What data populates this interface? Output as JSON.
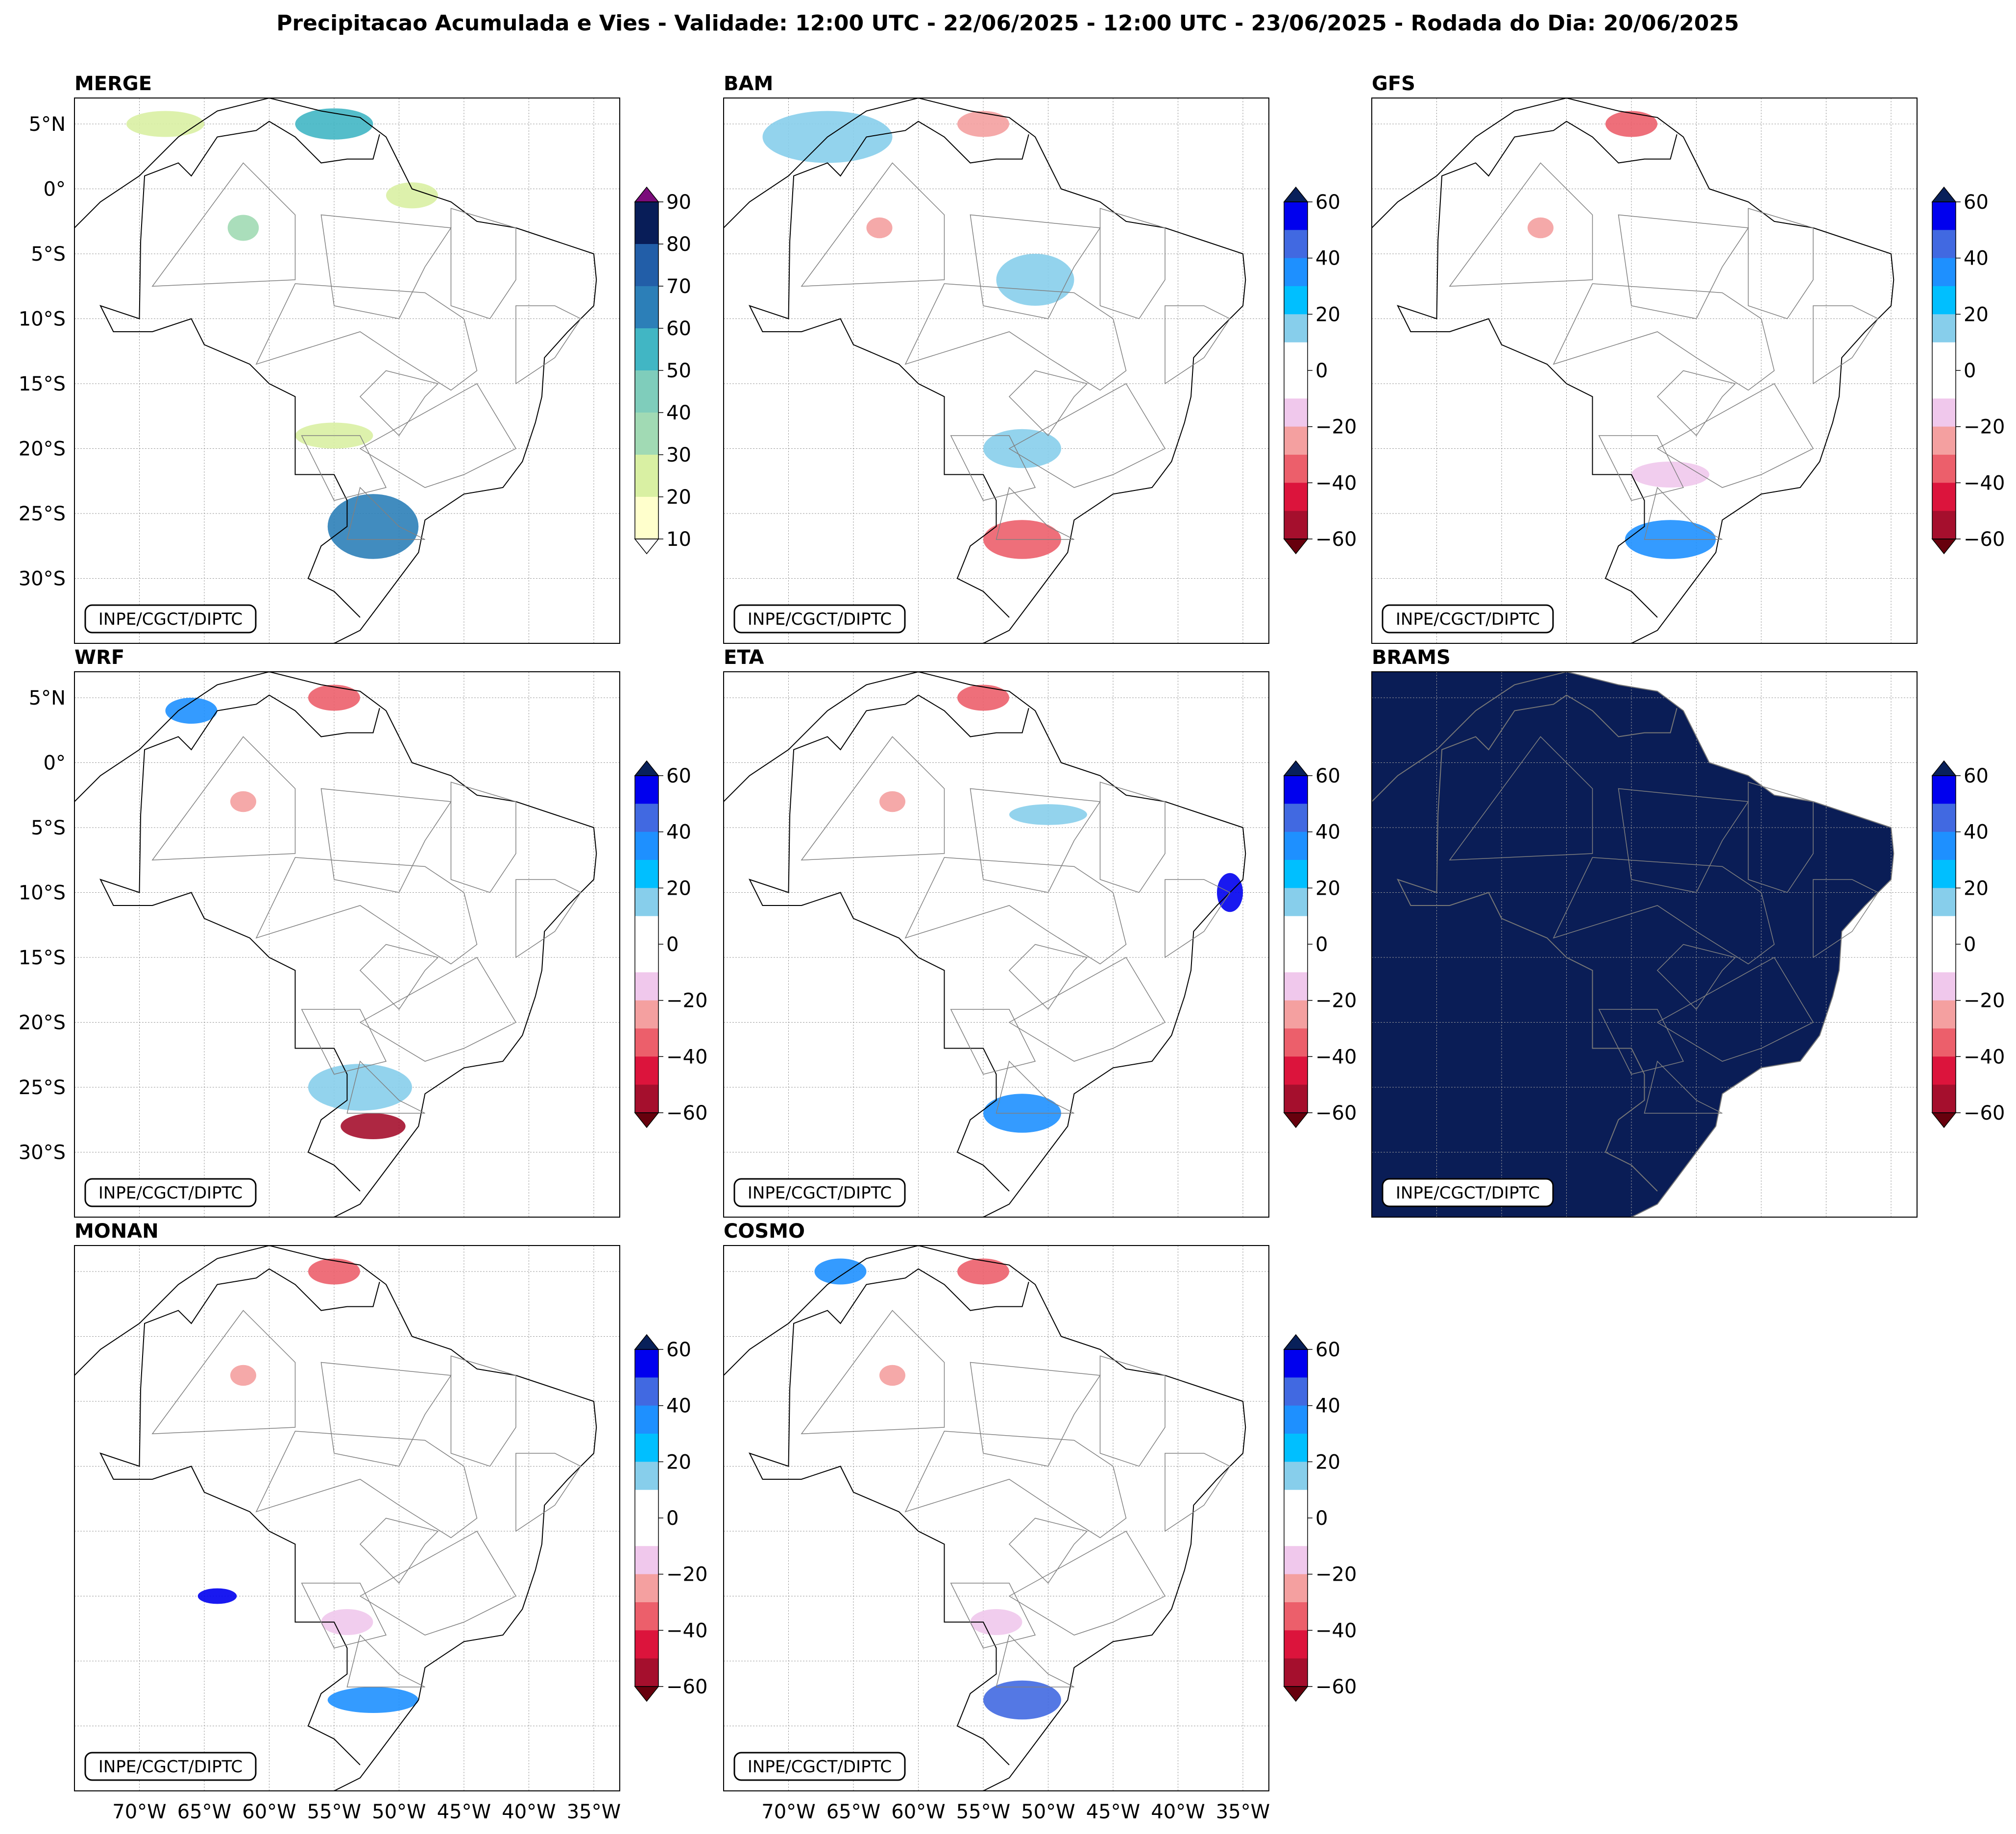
{
  "title": "Precipitacao Acumulada e Vies - Validade: 12:00 UTC - 22/06/2025 - 12:00 UTC - 23/06/2025 - Rodada do Dia: 20/06/2025",
  "credit": "INPE/CGCT/DIPTC",
  "lat_labels": [
    "5°N",
    "0°",
    "5°S",
    "10°S",
    "15°S",
    "20°S",
    "25°S",
    "30°S"
  ],
  "lon_labels": [
    "70°W",
    "65°W",
    "60°W",
    "55°W",
    "50°W",
    "45°W",
    "40°W",
    "35°W"
  ],
  "panels": [
    {
      "name": "MERGE",
      "kind": "precip",
      "lat_axis": true,
      "lon_axis": false
    },
    {
      "name": "BAM",
      "kind": "bias",
      "lat_axis": false,
      "lon_axis": false
    },
    {
      "name": "GFS",
      "kind": "bias",
      "lat_axis": false,
      "lon_axis": false
    },
    {
      "name": "WRF",
      "kind": "bias",
      "lat_axis": true,
      "lon_axis": false
    },
    {
      "name": "ETA",
      "kind": "bias",
      "lat_axis": false,
      "lon_axis": false
    },
    {
      "name": "BRAMS",
      "kind": "filled",
      "lat_axis": false,
      "lon_axis": false
    },
    {
      "name": "MONAN",
      "kind": "bias",
      "lat_axis": false,
      "lon_axis": true
    },
    {
      "name": "COSMO",
      "kind": "bias",
      "lat_axis": false,
      "lon_axis": true
    }
  ],
  "colorbars": {
    "precip": {
      "ticks": [
        "10",
        "20",
        "30",
        "40",
        "50",
        "60",
        "70",
        "80",
        "90"
      ],
      "colors": [
        "#ffffcc",
        "#d9f0a3",
        "#a1dab4",
        "#7fcdbb",
        "#41b6c4",
        "#2c7fb8",
        "#225ea8",
        "#253494",
        "#081d58"
      ],
      "over": "#7b0c7b",
      "under": "#ffffff"
    },
    "bias": {
      "ticks": [
        "60",
        "40",
        "20",
        "0",
        "−20",
        "−40",
        "−60"
      ],
      "colors_top_to_bottom": [
        "#0000ee",
        "#4169e1",
        "#1e90ff",
        "#00bfff",
        "#87ceeb",
        "#ffffff",
        "#ffffff",
        "#f0c8ec",
        "#f4a0a0",
        "#ec5f6b",
        "#dc143c",
        "#a50f2d"
      ],
      "over": "#08205a",
      "under": "#67000d"
    }
  },
  "colors": {
    "ocean_fill_brams": "#0a1d56",
    "land_line": "#000000",
    "state_line": "#808080"
  }
}
